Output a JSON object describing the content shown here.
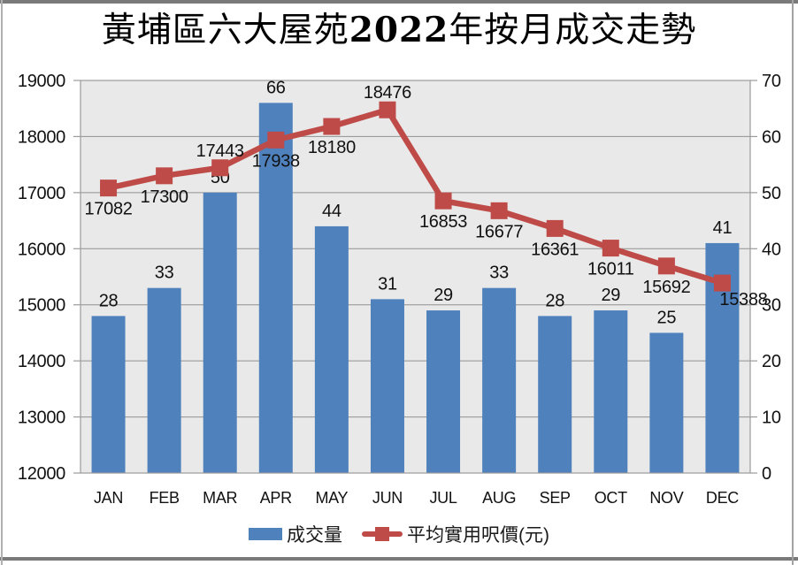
{
  "title_parts": {
    "prefix": "黃埔區六大屋苑",
    "year": "2022",
    "suffix": "年按月成交走勢"
  },
  "chart_data": {
    "type": "combo-bar-line",
    "title": "黃埔區六大屋苑2022年按月成交走勢",
    "categories": [
      "JAN",
      "FEB",
      "MAR",
      "APR",
      "MAY",
      "JUN",
      "JUL",
      "AUG",
      "SEP",
      "OCT",
      "NOV",
      "DEC"
    ],
    "series": [
      {
        "name": "成交量",
        "type": "bar",
        "axis": "right",
        "color": "#4F81BD",
        "values": [
          28,
          33,
          50,
          66,
          44,
          31,
          29,
          33,
          28,
          29,
          25,
          41
        ]
      },
      {
        "name": "平均實用呎價(元)",
        "type": "line",
        "axis": "left",
        "color": "#BE4B48",
        "values": [
          17082,
          17300,
          17443,
          17938,
          18180,
          18476,
          16853,
          16677,
          16361,
          16011,
          15692,
          15388
        ],
        "label_pos": [
          "below",
          "below",
          "above",
          "below",
          "below",
          "above",
          "below",
          "below",
          "below",
          "below",
          "below",
          "below-right"
        ]
      }
    ],
    "left_axis": {
      "min": 12000,
      "max": 19000,
      "step": 1000,
      "ticks": [
        19000,
        18000,
        17000,
        16000,
        15000,
        14000,
        13000,
        12000
      ]
    },
    "right_axis": {
      "min": 0,
      "max": 70,
      "step": 10,
      "ticks": [
        70,
        60,
        50,
        40,
        30,
        20,
        10,
        0
      ]
    },
    "grid": true,
    "legend_position": "bottom",
    "plot_bg": "#E9E9E9",
    "grid_color": "#919191",
    "border_color": "#9b9b9b",
    "label_color": "#111111"
  }
}
